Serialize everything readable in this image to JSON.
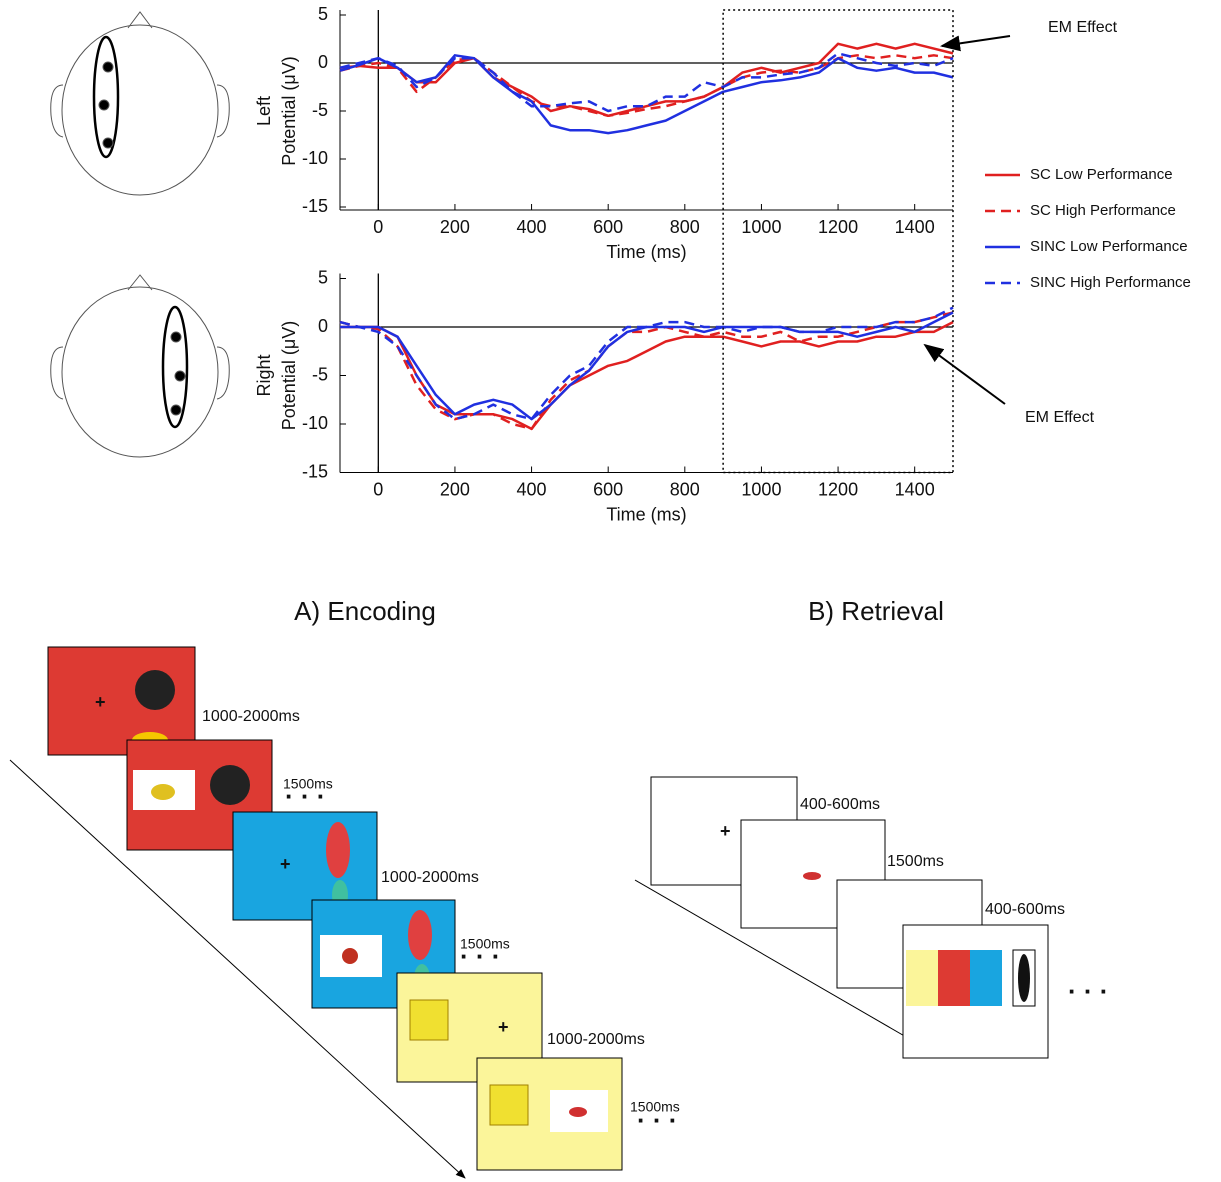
{
  "chart_data": [
    {
      "type": "line",
      "ylabel": [
        "Left",
        "Potential (μV)"
      ],
      "xlabel": "Time (ms)",
      "x": [
        -100,
        -50,
        0,
        50,
        100,
        150,
        200,
        250,
        300,
        350,
        400,
        450,
        500,
        550,
        600,
        650,
        700,
        750,
        800,
        850,
        900,
        950,
        1000,
        1050,
        1100,
        1150,
        1200,
        1250,
        1300,
        1350,
        1400,
        1450,
        1500
      ],
      "xlim": [
        -100,
        1500
      ],
      "xticks": [
        0,
        200,
        400,
        600,
        800,
        1000,
        1200,
        1400
      ],
      "ylim": [
        -15,
        5
      ],
      "yticks": [
        -15,
        -10,
        -5,
        0,
        5
      ],
      "highlight_xrange": [
        900,
        1500
      ],
      "annotation": "EM Effect",
      "series": [
        {
          "name": "SC Low Performance",
          "color": "#e02020",
          "dash": false,
          "values": [
            -0.5,
            -0.3,
            -0.5,
            -0.5,
            -2,
            -2,
            0,
            0.5,
            -1.5,
            -2.5,
            -3.5,
            -5,
            -4.5,
            -4.8,
            -5.5,
            -5,
            -4.5,
            -4,
            -4,
            -3.5,
            -2.5,
            -1,
            -0.5,
            -1,
            -0.5,
            0,
            2,
            1.5,
            2,
            1.5,
            2,
            1.5,
            1
          ]
        },
        {
          "name": "SC High Performance",
          "color": "#e02020",
          "dash": true,
          "values": [
            -0.8,
            -0.3,
            0,
            -0.5,
            -3,
            -1.5,
            0.3,
            0.5,
            -1,
            -2.5,
            -4,
            -4.5,
            -4.5,
            -5,
            -5.5,
            -5.2,
            -4.8,
            -4.5,
            -4,
            -3.5,
            -2.5,
            -1.5,
            -1,
            -0.8,
            -1,
            -0.5,
            0.5,
            0.8,
            0.5,
            0.8,
            0.5,
            0.8,
            0.5
          ]
        },
        {
          "name": "SINC Low Performance",
          "color": "#2030e0",
          "dash": false,
          "values": [
            -0.8,
            -0.2,
            0.5,
            -0.5,
            -2,
            -1.5,
            0.8,
            0.5,
            -1.5,
            -3,
            -4,
            -6.5,
            -7,
            -7,
            -7.3,
            -7,
            -6.5,
            -6,
            -5,
            -4,
            -3,
            -2.5,
            -2,
            -1.8,
            -1.5,
            -1,
            0.5,
            -0.5,
            -0.8,
            -0.5,
            -1,
            -1,
            -1.5
          ]
        },
        {
          "name": "SINC High Performance",
          "color": "#2030e0",
          "dash": true,
          "values": [
            -0.5,
            0,
            0.5,
            -0.3,
            -2.5,
            -1.5,
            0.5,
            0.5,
            -1,
            -3,
            -4.5,
            -4.5,
            -4.2,
            -4,
            -5,
            -4.5,
            -4.5,
            -3.5,
            -3.5,
            -2,
            -2.5,
            -1.5,
            -1.5,
            -1.2,
            -1,
            -0.5,
            1,
            0.5,
            0,
            -0.3,
            0,
            -0.3,
            0.5
          ]
        }
      ]
    },
    {
      "type": "line",
      "ylabel": [
        "Right",
        "Potential (μV)"
      ],
      "xlabel": "Time (ms)",
      "x": [
        -100,
        -50,
        0,
        50,
        100,
        150,
        200,
        250,
        300,
        350,
        400,
        450,
        500,
        550,
        600,
        650,
        700,
        750,
        800,
        850,
        900,
        950,
        1000,
        1050,
        1100,
        1150,
        1200,
        1250,
        1300,
        1350,
        1400,
        1450,
        1500
      ],
      "xlim": [
        -100,
        1500
      ],
      "xticks": [
        0,
        200,
        400,
        600,
        800,
        1000,
        1200,
        1400
      ],
      "ylim": [
        -15,
        5
      ],
      "yticks": [
        -15,
        -10,
        -5,
        0,
        5
      ],
      "annotation": "EM Effect",
      "series": [
        {
          "color": "#e02020",
          "dash": false,
          "values": [
            0,
            0,
            0,
            -1,
            -5,
            -8,
            -9,
            -9,
            -9,
            -9.5,
            -10.5,
            -8,
            -6,
            -5,
            -4,
            -3.5,
            -2.5,
            -1.5,
            -1,
            -1,
            -1,
            -1.5,
            -2,
            -1.5,
            -1.5,
            -2,
            -1.5,
            -1.5,
            -1,
            -1,
            -0.5,
            -0.5,
            0.5
          ]
        },
        {
          "color": "#e02020",
          "dash": true,
          "values": [
            0.5,
            0,
            -0.2,
            -2,
            -6,
            -8.5,
            -9.5,
            -9,
            -9,
            -10,
            -10.5,
            -7.5,
            -5.5,
            -4.5,
            -2,
            -0.5,
            -0.5,
            0,
            -0.5,
            -1,
            -0.5,
            -1,
            -1,
            -0.5,
            -1.5,
            -1,
            -1,
            -0.5,
            0,
            0.5,
            0.5,
            1,
            1.5
          ]
        },
        {
          "color": "#2030e0",
          "dash": false,
          "values": [
            0,
            0,
            0,
            -1,
            -4,
            -7,
            -9,
            -8,
            -7.5,
            -8,
            -9.5,
            -8,
            -6,
            -4.5,
            -2,
            -0.5,
            0,
            0,
            0,
            -0.5,
            0,
            0,
            0,
            0,
            -0.5,
            -0.5,
            -0.5,
            -1,
            -0.5,
            0,
            -0.5,
            0.5,
            1.5
          ]
        },
        {
          "color": "#2030e0",
          "dash": true,
          "values": [
            0.5,
            0,
            -0.5,
            -2,
            -5,
            -8,
            -9.5,
            -9,
            -8,
            -9,
            -9.5,
            -7,
            -5,
            -4,
            -1.5,
            0,
            0,
            0.5,
            0.5,
            0,
            0,
            -0.5,
            0,
            0,
            -0.5,
            -0.5,
            0,
            0,
            0,
            0.5,
            0.5,
            1,
            2
          ]
        }
      ]
    }
  ],
  "diagram": {
    "encoding": {
      "title": "A) Encoding",
      "timings": [
        "1000-2000ms",
        "1500ms",
        "1000-2000ms",
        "1500ms",
        "1000-2000ms",
        "1500ms"
      ]
    },
    "retrieval": {
      "title": "B) Retrieval",
      "timings": [
        "400-600ms",
        "1500ms",
        "400-600ms"
      ]
    }
  }
}
